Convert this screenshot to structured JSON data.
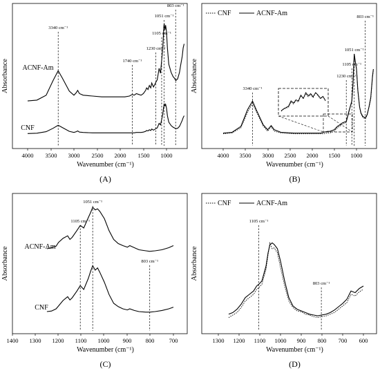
{
  "chart_data": [
    {
      "panel": "A",
      "type": "line",
      "caption": "(A)",
      "xlabel": "Wavenumber (cm⁻¹)",
      "ylabel": "Absorbance",
      "xlim": [
        4100,
        600
      ],
      "xticks": [
        "4000",
        "3500",
        "3000",
        "2500",
        "2000",
        "1500",
        "1000"
      ],
      "series": [
        {
          "name": "ACNF-Am",
          "x": [
            4000,
            3800,
            3600,
            3450,
            3340,
            3250,
            3100,
            3000,
            2950,
            2920,
            2880,
            2800,
            2600,
            2400,
            2200,
            2000,
            1900,
            1800,
            1740,
            1700,
            1650,
            1600,
            1550,
            1500,
            1450,
            1430,
            1400,
            1370,
            1340,
            1320,
            1280,
            1230,
            1200,
            1160,
            1130,
            1105,
            1080,
            1060,
            1051,
            1035,
            1020,
            1000,
            980,
            950,
            900,
            860,
            830,
            800,
            760,
            720,
            700,
            660,
            640,
            620
          ],
          "y": [
            0.05,
            0.06,
            0.12,
            0.3,
            0.42,
            0.33,
            0.17,
            0.12,
            0.15,
            0.18,
            0.14,
            0.12,
            0.11,
            0.1,
            0.1,
            0.1,
            0.1,
            0.11,
            0.13,
            0.12,
            0.14,
            0.13,
            0.12,
            0.14,
            0.18,
            0.21,
            0.19,
            0.24,
            0.21,
            0.27,
            0.22,
            0.28,
            0.31,
            0.45,
            0.39,
            0.55,
            0.7,
            0.95,
            1.0,
            0.92,
            0.98,
            0.9,
            0.7,
            0.5,
            0.4,
            0.35,
            0.33,
            0.3,
            0.32,
            0.4,
            0.47,
            0.6,
            0.7,
            0.75
          ]
        },
        {
          "name": "CNF",
          "x": [
            4000,
            3800,
            3600,
            3450,
            3340,
            3250,
            3100,
            3000,
            2950,
            2920,
            2880,
            2800,
            2600,
            2400,
            2200,
            2000,
            1900,
            1800,
            1740,
            1700,
            1650,
            1600,
            1550,
            1500,
            1450,
            1430,
            1400,
            1370,
            1340,
            1320,
            1280,
            1230,
            1200,
            1160,
            1130,
            1105,
            1080,
            1060,
            1051,
            1035,
            1020,
            1000,
            980,
            950,
            900,
            860,
            830,
            800,
            760,
            720,
            700,
            660,
            640,
            620
          ],
          "y": [
            0.03,
            0.04,
            0.08,
            0.17,
            0.25,
            0.19,
            0.09,
            0.06,
            0.08,
            0.1,
            0.07,
            0.06,
            0.05,
            0.05,
            0.05,
            0.05,
            0.05,
            0.05,
            0.05,
            0.05,
            0.06,
            0.06,
            0.06,
            0.07,
            0.09,
            0.11,
            0.1,
            0.13,
            0.11,
            0.15,
            0.12,
            0.16,
            0.18,
            0.3,
            0.26,
            0.4,
            0.55,
            0.75,
            0.82,
            0.76,
            0.8,
            0.7,
            0.5,
            0.33,
            0.24,
            0.2,
            0.18,
            0.16,
            0.17,
            0.22,
            0.27,
            0.38,
            0.45,
            0.5
          ]
        }
      ],
      "annotations": [
        "3340 cm⁻¹",
        "1740 cm⁻¹",
        "1230 cm⁻¹",
        "1105 cm⁻¹",
        "1051 cm⁻¹",
        "803 cm⁻¹"
      ],
      "annotation_x": [
        3340,
        1740,
        1230,
        1105,
        1051,
        803
      ],
      "curve_labels": [
        "ACNF-Am",
        "CNF"
      ]
    },
    {
      "panel": "B",
      "type": "line",
      "caption": "(B)",
      "xlabel": "Wavenumber (cm⁻¹)",
      "ylabel": "Absorbance",
      "xlim": [
        4100,
        600
      ],
      "xticks": [
        "4000",
        "3500",
        "3000",
        "2500",
        "2000",
        "1500",
        "1000"
      ],
      "legend": [
        "CNF",
        "ACNF-Am"
      ],
      "legend_position": "top-left",
      "series": [
        {
          "name": "CNF",
          "style": "dotted",
          "x": [
            4000,
            3800,
            3600,
            3450,
            3340,
            3250,
            3100,
            3000,
            2920,
            2850,
            2700,
            2400,
            2000,
            1800,
            1740,
            1650,
            1600,
            1500,
            1430,
            1370,
            1320,
            1230,
            1200,
            1160,
            1105,
            1080,
            1051,
            1030,
            1000,
            970,
            930,
            900,
            860,
            803,
            760,
            720,
            680,
            640,
            620
          ],
          "y": [
            0.05,
            0.06,
            0.12,
            0.3,
            0.4,
            0.3,
            0.14,
            0.08,
            0.13,
            0.08,
            0.06,
            0.05,
            0.05,
            0.05,
            0.05,
            0.06,
            0.06,
            0.08,
            0.12,
            0.14,
            0.16,
            0.18,
            0.24,
            0.32,
            0.42,
            0.62,
            0.95,
            0.88,
            0.8,
            0.55,
            0.35,
            0.28,
            0.24,
            0.22,
            0.26,
            0.35,
            0.45,
            0.7,
            0.78
          ]
        },
        {
          "name": "ACNF-Am",
          "style": "solid",
          "x": [
            4000,
            3800,
            3600,
            3450,
            3340,
            3250,
            3100,
            3000,
            2920,
            2850,
            2700,
            2400,
            2000,
            1800,
            1740,
            1650,
            1600,
            1500,
            1430,
            1370,
            1320,
            1230,
            1200,
            1160,
            1105,
            1080,
            1051,
            1030,
            1000,
            970,
            930,
            900,
            860,
            803,
            760,
            720,
            680,
            640,
            620
          ],
          "y": [
            0.06,
            0.07,
            0.14,
            0.34,
            0.44,
            0.33,
            0.16,
            0.1,
            0.15,
            0.1,
            0.07,
            0.06,
            0.06,
            0.06,
            0.07,
            0.08,
            0.08,
            0.1,
            0.14,
            0.16,
            0.18,
            0.2,
            0.26,
            0.34,
            0.44,
            0.65,
            1.0,
            0.92,
            0.82,
            0.57,
            0.37,
            0.3,
            0.26,
            0.24,
            0.28,
            0.37,
            0.48,
            0.74,
            0.82
          ]
        }
      ],
      "inset_series": [
        {
          "name": "CNF",
          "style": "dotted",
          "y": [
            0.1,
            0.2,
            0.25,
            0.3,
            0.55,
            0.45,
            0.6,
            0.55,
            0.85,
            0.7,
            0.95,
            0.8,
            0.9,
            0.75,
            1.0,
            0.85,
            0.7,
            0.8,
            0.6
          ]
        },
        {
          "name": "ACNF-Am",
          "style": "solid",
          "y": [
            0.12,
            0.22,
            0.28,
            0.35,
            0.6,
            0.5,
            0.65,
            0.6,
            0.88,
            0.72,
            1.0,
            0.85,
            0.95,
            0.8,
            1.0,
            0.88,
            0.72,
            0.82,
            0.62
          ]
        }
      ],
      "annotations": [
        "3340 cm⁻¹",
        "1230 cm⁻¹",
        "1105 cm⁻¹",
        "1051 cm⁻¹",
        "803 cm⁻¹"
      ],
      "annotation_x": [
        3340,
        1230,
        1105,
        1051,
        803
      ]
    },
    {
      "panel": "C",
      "type": "line",
      "caption": "(C)",
      "xlabel": "Wavenumber (cm⁻¹)",
      "ylabel": "Absorbance",
      "xlim": [
        1400,
        650
      ],
      "xticks": [
        "1400",
        "1300",
        "1200",
        "1100",
        "1000",
        "900",
        "800",
        "700"
      ],
      "series": [
        {
          "name": "ACNF-Am",
          "x": [
            1250,
            1230,
            1210,
            1200,
            1180,
            1160,
            1150,
            1140,
            1120,
            1105,
            1090,
            1070,
            1060,
            1051,
            1040,
            1030,
            1020,
            1000,
            980,
            960,
            940,
            920,
            900,
            890,
            870,
            850,
            820,
            803,
            780,
            750,
            720,
            700
          ],
          "y": [
            0.2,
            0.22,
            0.25,
            0.32,
            0.4,
            0.45,
            0.38,
            0.42,
            0.55,
            0.65,
            0.6,
            0.8,
            0.9,
            1.0,
            0.95,
            0.97,
            0.92,
            0.78,
            0.55,
            0.38,
            0.3,
            0.26,
            0.23,
            0.26,
            0.22,
            0.18,
            0.16,
            0.15,
            0.16,
            0.18,
            0.22,
            0.26
          ]
        },
        {
          "name": "CNF",
          "x": [
            1250,
            1230,
            1210,
            1200,
            1180,
            1160,
            1150,
            1140,
            1120,
            1105,
            1090,
            1070,
            1060,
            1051,
            1040,
            1030,
            1020,
            1000,
            980,
            960,
            940,
            920,
            900,
            890,
            870,
            850,
            820,
            803,
            780,
            750,
            720,
            700
          ],
          "y": [
            0.05,
            0.06,
            0.1,
            0.15,
            0.25,
            0.32,
            0.26,
            0.3,
            0.42,
            0.52,
            0.45,
            0.65,
            0.78,
            0.88,
            0.8,
            0.84,
            0.76,
            0.58,
            0.36,
            0.2,
            0.14,
            0.1,
            0.08,
            0.1,
            0.07,
            0.05,
            0.04,
            0.04,
            0.05,
            0.07,
            0.1,
            0.13
          ]
        }
      ],
      "annotations": [
        "1105 cm⁻¹",
        "1051 cm⁻¹",
        "803 cm⁻¹"
      ],
      "annotation_x": [
        1105,
        1051,
        803
      ],
      "curve_labels": [
        "ACNF-Am",
        "CNF"
      ]
    },
    {
      "panel": "D",
      "type": "line",
      "caption": "(D)",
      "xlabel": "Wavenumber (cm⁻¹)",
      "ylabel": "Absorbance",
      "xlim": [
        1300,
        580
      ],
      "xticks": [
        "1300",
        "1200",
        "1100",
        "1000",
        "900",
        "800",
        "700",
        "600"
      ],
      "legend": [
        "CNF",
        "ACNF-Am"
      ],
      "legend_position": "top-left",
      "series": [
        {
          "name": "CNF",
          "style": "dotted",
          "x": [
            1250,
            1230,
            1210,
            1190,
            1170,
            1150,
            1130,
            1115,
            1105,
            1090,
            1070,
            1060,
            1051,
            1040,
            1030,
            1015,
            1000,
            980,
            960,
            940,
            920,
            900,
            880,
            860,
            840,
            820,
            803,
            780,
            760,
            740,
            720,
            700,
            680,
            660,
            640,
            620,
            600
          ],
          "y": [
            0.02,
            0.05,
            0.08,
            0.14,
            0.22,
            0.26,
            0.3,
            0.36,
            0.38,
            0.42,
            0.6,
            0.78,
            0.92,
            0.85,
            0.86,
            0.8,
            0.62,
            0.4,
            0.22,
            0.14,
            0.1,
            0.09,
            0.06,
            0.05,
            0.03,
            0.02,
            0.03,
            0.04,
            0.06,
            0.08,
            0.12,
            0.16,
            0.2,
            0.3,
            0.28,
            0.33,
            0.36
          ]
        },
        {
          "name": "ACNF-Am",
          "style": "solid",
          "x": [
            1250,
            1230,
            1210,
            1190,
            1170,
            1150,
            1130,
            1115,
            1105,
            1090,
            1070,
            1060,
            1051,
            1040,
            1030,
            1015,
            1000,
            980,
            960,
            940,
            920,
            900,
            880,
            860,
            840,
            820,
            803,
            780,
            760,
            740,
            720,
            700,
            680,
            660,
            640,
            620,
            600
          ],
          "y": [
            0.06,
            0.08,
            0.12,
            0.18,
            0.26,
            0.3,
            0.34,
            0.4,
            0.42,
            0.46,
            0.64,
            0.8,
            0.9,
            0.92,
            0.9,
            0.85,
            0.7,
            0.46,
            0.26,
            0.16,
            0.12,
            0.1,
            0.08,
            0.06,
            0.05,
            0.04,
            0.05,
            0.06,
            0.08,
            0.11,
            0.15,
            0.19,
            0.24,
            0.34,
            0.32,
            0.37,
            0.4
          ]
        }
      ],
      "annotations": [
        "1105 cm⁻¹",
        "803 cm⁻¹"
      ],
      "annotation_x": [
        1105,
        803
      ]
    }
  ]
}
